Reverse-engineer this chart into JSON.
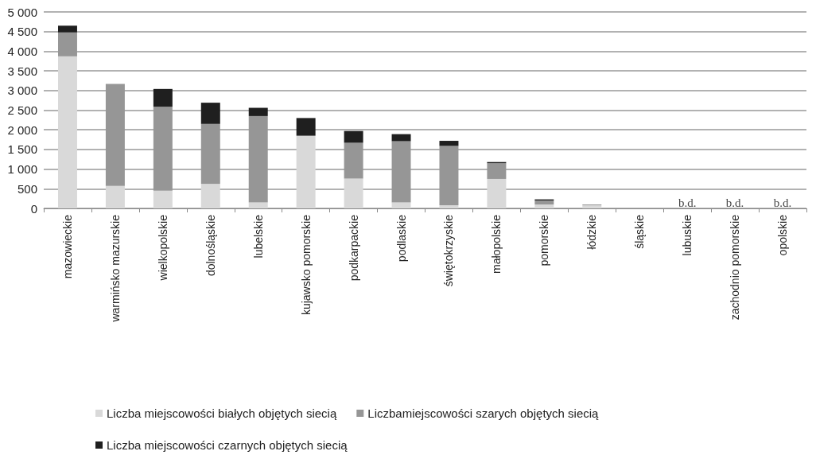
{
  "chart_data": {
    "type": "bar",
    "stacked": true,
    "categories": [
      "mazowieckie",
      "warmińsko mazurskie",
      "wielkopolskie",
      "dolnośląskie",
      "lubelskie",
      "kujawsko pomorskie",
      "podkarpackie",
      "podlaskie",
      "świętokrzyskie",
      "małopolskie",
      "pomorskie",
      "łódzkie",
      "śląskie",
      "lubuskie",
      "zachodnio pomorskie",
      "opolskie"
    ],
    "series": [
      {
        "name": "Liczba miejscowości białych objętych siecią",
        "color": "#d9d9d9",
        "values": [
          3870,
          570,
          450,
          620,
          150,
          1850,
          760,
          150,
          80,
          750,
          100,
          80,
          0,
          null,
          null,
          null
        ],
        "value_labels": [
          null,
          null,
          null,
          null,
          null,
          null,
          null,
          null,
          null,
          null,
          null,
          null,
          null,
          "b.d.",
          "b.d.",
          "b.d."
        ]
      },
      {
        "name": "Liczbamiejscowości szarych objętych siecią",
        "color": "#969696",
        "values": [
          610,
          2600,
          2140,
          1530,
          2200,
          0,
          910,
          1560,
          1510,
          400,
          100,
          20,
          0,
          null,
          null,
          null
        ]
      },
      {
        "name": "Liczba miejscowości czarnych objętych siecią",
        "color": "#1f1f1f",
        "values": [
          170,
          0,
          450,
          540,
          210,
          450,
          300,
          180,
          130,
          30,
          30,
          0,
          0,
          null,
          null,
          null
        ]
      }
    ],
    "ylim": [
      0,
      5000
    ],
    "yticks": [
      0,
      {
        "value": 500,
        "label": "500"
      },
      {
        "value": 1000,
        "label": "1 000"
      },
      {
        "value": 1500,
        "label": "1 500"
      },
      {
        "value": 2000,
        "label": "2 000"
      },
      {
        "value": 2500,
        "label": "2 500"
      },
      {
        "value": 3000,
        "label": "3 000"
      },
      {
        "value": 3500,
        "label": "3 500"
      },
      {
        "value": 4000,
        "label": "4 000"
      },
      {
        "value": 4500,
        "label": "4 500"
      },
      {
        "value": 5000,
        "label": "5 000"
      }
    ],
    "grid": "y",
    "legend": "bottom"
  }
}
